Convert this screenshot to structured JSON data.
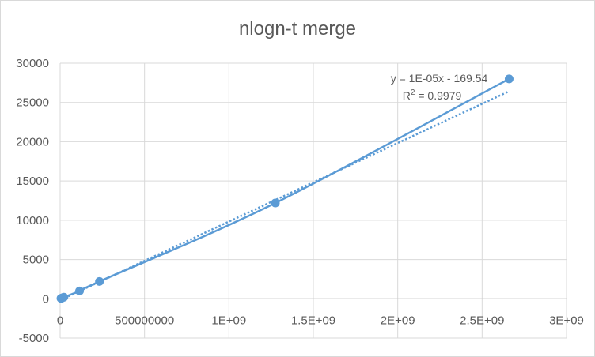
{
  "colors": {
    "series": "#5b9bd5",
    "grid": "#d9d9d9",
    "text": "#595959",
    "frame": "#d9d9d9"
  },
  "chart_data": {
    "type": "scatter",
    "title": "nlogn-t merge",
    "xlabel": "",
    "ylabel": "",
    "xlim": [
      0,
      3000000000
    ],
    "ylim": [
      -5000,
      30000
    ],
    "x_ticks": [
      {
        "value": 0,
        "label": "0"
      },
      {
        "value": 500000000,
        "label": "500000000"
      },
      {
        "value": 1000000000,
        "label": "1E+09"
      },
      {
        "value": 1500000000,
        "label": "1.5E+09"
      },
      {
        "value": 2000000000,
        "label": "2E+09"
      },
      {
        "value": 2500000000,
        "label": "2.5E+09"
      },
      {
        "value": 3000000000,
        "label": "3E+09"
      }
    ],
    "y_ticks": [
      {
        "value": -5000,
        "label": "-5000"
      },
      {
        "value": 0,
        "label": "0"
      },
      {
        "value": 5000,
        "label": "5000"
      },
      {
        "value": 10000,
        "label": "10000"
      },
      {
        "value": 15000,
        "label": "15000"
      },
      {
        "value": 20000,
        "label": "20000"
      },
      {
        "value": 25000,
        "label": "25000"
      },
      {
        "value": 30000,
        "label": "30000"
      }
    ],
    "grid": true,
    "legend": "none",
    "series": [
      {
        "x": [
          5000000,
          11000000,
          22000000,
          115000000,
          233000000,
          1275000000,
          2660000000
        ],
        "y": [
          50,
          100,
          200,
          1000,
          2200,
          12200,
          28000
        ],
        "line": "smooth",
        "markers": true
      }
    ],
    "trendline": {
      "type": "linear",
      "slope": 1e-05,
      "intercept": -169.54,
      "equation": "y = 1E-05x - 169.54",
      "r2_label": "R",
      "r2_sup": "2",
      "r2_value": " = 0.9979"
    }
  }
}
